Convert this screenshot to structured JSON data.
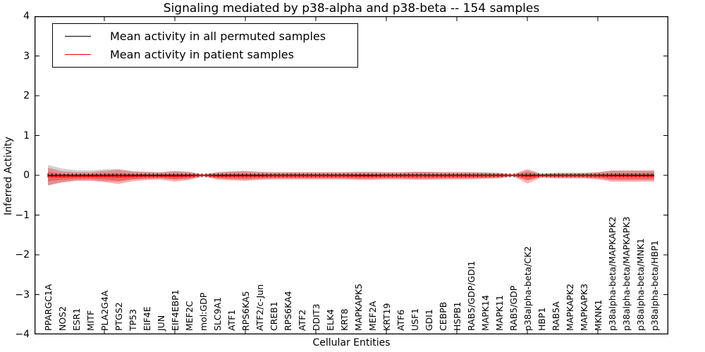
{
  "chart_data": {
    "type": "line",
    "title": "Signaling mediated by p38-alpha and p38-beta -- 154 samples",
    "xlabel": "Cellular Entities",
    "ylabel": "Inferred Activity",
    "ylim": [
      -4,
      4
    ],
    "yticks": [
      "4",
      "3",
      "2",
      "1",
      "0",
      "−1",
      "−2",
      "−3",
      "−4"
    ],
    "grid": false,
    "legend_position": "upper left",
    "legend": [
      {
        "label": "Mean activity in all permuted samples",
        "color": "#000000"
      },
      {
        "label": "Mean activity in patient samples",
        "color": "#ff0000"
      }
    ],
    "categories": [
      "PPARGC1A",
      "NOS2",
      "ESR1",
      "MITF",
      "PLA2G4A",
      "PTGS2",
      "TP53",
      "EIF4E",
      "JUN",
      "EIF4EBP1",
      "MEF2C",
      "mol:GDP",
      "SLC9A1",
      "ATF1",
      "RPS6KA5",
      "ATF2/c-Jun",
      "CREB1",
      "RPS6KA4",
      "ATF2",
      "DDIT3",
      "ELK4",
      "KRT8",
      "MAPKAPK5",
      "MEF2A",
      "KRT19",
      "ATF6",
      "USF1",
      "GDI1",
      "CEBPB",
      "HSPB1",
      "RAB5/GDP/GDI1",
      "MAPK14",
      "MAPK11",
      "RAB5/GDP",
      "p38alpha-beta/CK2",
      "HBP1",
      "RAB5A",
      "MAPKAPK2",
      "MAPKAPK3",
      "MKNK1",
      "p38alpha-beta/MAPKAPK2",
      "p38alpha-beta/MAPKAPK3",
      "p38alpha-beta/MNK1",
      "p38alpha-beta/HBP1"
    ],
    "series": [
      {
        "name": "Mean activity in all permuted samples",
        "color": "#000000",
        "values": [
          0,
          0,
          0,
          0,
          0,
          0,
          0,
          0,
          0,
          0,
          0,
          0,
          0,
          0,
          0,
          0,
          0,
          0,
          0,
          0,
          0,
          0,
          0,
          0,
          0,
          0,
          0,
          0,
          0,
          0,
          0,
          0,
          0,
          0,
          0,
          0,
          0,
          0,
          0,
          0,
          0,
          0,
          0,
          0
        ]
      },
      {
        "name": "Mean activity in patient samples",
        "color": "#ff0000",
        "values": [
          -0.03,
          -0.04,
          -0.03,
          -0.03,
          -0.03,
          -0.04,
          -0.03,
          -0.02,
          -0.02,
          -0.03,
          -0.02,
          0,
          -0.02,
          -0.02,
          -0.02,
          -0.02,
          -0.015,
          -0.015,
          -0.015,
          -0.015,
          -0.015,
          -0.015,
          -0.02,
          -0.02,
          -0.015,
          -0.015,
          -0.015,
          -0.015,
          -0.015,
          -0.015,
          -0.015,
          -0.01,
          -0.01,
          0,
          -0.025,
          -0.01,
          -0.01,
          -0.01,
          -0.01,
          -0.015,
          -0.02,
          -0.02,
          -0.02,
          -0.02
        ]
      }
    ],
    "patient_band_halfwidth": [
      0.22,
      0.14,
      0.11,
      0.11,
      0.14,
      0.18,
      0.12,
      0.1,
      0.09,
      0.13,
      0.1,
      0.03,
      0.09,
      0.11,
      0.12,
      0.1,
      0.09,
      0.09,
      0.09,
      0.09,
      0.09,
      0.09,
      0.1,
      0.1,
      0.09,
      0.09,
      0.1,
      0.1,
      0.09,
      0.09,
      0.09,
      0.08,
      0.07,
      0.03,
      0.18,
      0.05,
      0.07,
      0.07,
      0.07,
      0.09,
      0.14,
      0.14,
      0.14,
      0.14
    ],
    "permuted_band_halfwidth": [
      0.26,
      0.17,
      0.13,
      0.12,
      0.15,
      0.16,
      0.11,
      0.09,
      0.08,
      0.11,
      0.09,
      0.02,
      0.08,
      0.1,
      0.11,
      0.09,
      0.08,
      0.08,
      0.08,
      0.08,
      0.08,
      0.08,
      0.09,
      0.09,
      0.08,
      0.08,
      0.09,
      0.09,
      0.08,
      0.08,
      0.08,
      0.07,
      0.06,
      0.02,
      0.12,
      0.04,
      0.06,
      0.06,
      0.06,
      0.08,
      0.12,
      0.12,
      0.12,
      0.12
    ],
    "band_fill_color": "#ff0000",
    "permuted_band_color": "#888888",
    "sample_marker": "|",
    "sample_count_label": "154 samples"
  }
}
